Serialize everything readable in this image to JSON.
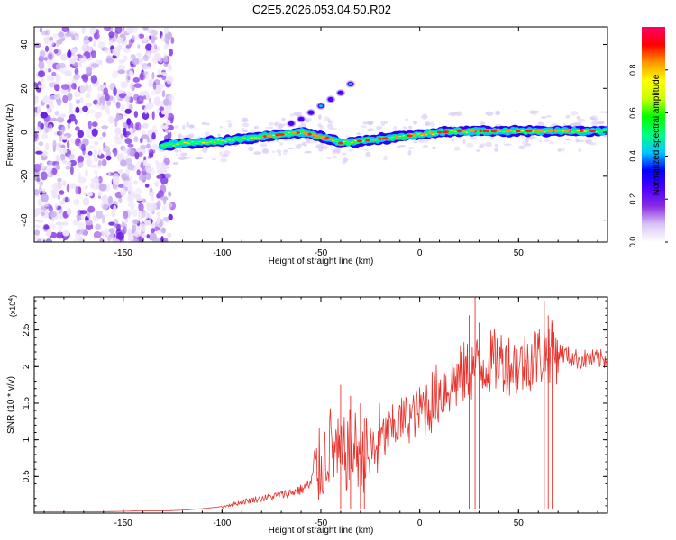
{
  "figure_title": "C2E5.2026.053.04.50.R02",
  "chart_data": [
    {
      "type": "heatmap",
      "panel": "spectrogram",
      "xlabel": "Height of straight line (km)",
      "ylabel": "Frequency (Hz)",
      "xlim": [
        -195,
        95
      ],
      "ylim": [
        -50,
        48
      ],
      "x_ticks": [
        -150,
        -100,
        -50,
        0,
        50
      ],
      "y_ticks": [
        -40,
        -20,
        0,
        20,
        40
      ],
      "x_tick_labels": [
        "-150",
        "-100",
        "-50",
        "0",
        "50"
      ],
      "y_tick_labels": [
        "-40",
        "-20",
        "0",
        "20",
        "40"
      ],
      "noise_region_x": [
        -195,
        -125
      ],
      "ridge": {
        "x": [
          -130,
          -120,
          -110,
          -100,
          -90,
          -80,
          -70,
          -60,
          -50,
          -45,
          -40,
          -30,
          -20,
          -10,
          0,
          10,
          20,
          30,
          40,
          50,
          60,
          70,
          80,
          95
        ],
        "y": [
          -6,
          -5,
          -4.5,
          -4,
          -3,
          -2,
          -1,
          0,
          -2,
          -3,
          -5,
          -4,
          -3,
          -2,
          -1,
          0,
          0.5,
          0.5,
          0.5,
          0.5,
          0.5,
          0.5,
          0.5,
          0.5
        ]
      },
      "branch": {
        "x": [
          -65,
          -60,
          -55,
          -50,
          -45,
          -40,
          -35
        ],
        "y": [
          4,
          6,
          9,
          12,
          15,
          18,
          22
        ]
      },
      "colorbar": {
        "label": "Normalized spectral amplitude",
        "range": [
          0,
          1
        ],
        "ticks": [
          0.0,
          0.2,
          0.4,
          0.6,
          0.8
        ],
        "tick_labels": [
          "0.0",
          "0.2",
          "0.4",
          "0.6",
          "0.8"
        ],
        "colormap": [
          "#ffffff",
          "#d8c4f4",
          "#8a2be2",
          "#4b00ff",
          "#0000ff",
          "#00c8ff",
          "#00ff7f",
          "#00ff00",
          "#c8ff00",
          "#ffff00",
          "#ff9900",
          "#ff0000",
          "#ff0066"
        ]
      }
    },
    {
      "type": "line",
      "panel": "snr",
      "xlabel": "Height of straight line (km)",
      "ylabel": "SNR (10 * v/v)",
      "y_multiplier_label": "(x10",
      "y_multiplier_exponent": "4",
      "y_multiplier_close": ")",
      "xlim": [
        -195,
        95
      ],
      "ylim": [
        0,
        2.95
      ],
      "x_ticks": [
        -150,
        -100,
        -50,
        0,
        50
      ],
      "y_ticks": [
        0.5,
        1.0,
        1.5,
        2.0,
        2.5
      ],
      "x_tick_labels": [
        "-150",
        "-100",
        "-50",
        "0",
        "50"
      ],
      "y_tick_labels": [
        "0.5",
        "1",
        "1.5",
        "2",
        "2.5"
      ],
      "line_color": "#e8322c",
      "series": [
        {
          "name": "SNR",
          "x": [
            -195,
            -180,
            -160,
            -140,
            -130,
            -120,
            -110,
            -100,
            -95,
            -90,
            -85,
            -80,
            -75,
            -70,
            -65,
            -60,
            -55,
            -50,
            -45,
            -40,
            -35,
            -30,
            -25,
            -20,
            -15,
            -10,
            -5,
            0,
            5,
            10,
            15,
            20,
            25,
            30,
            35,
            40,
            45,
            50,
            55,
            60,
            65,
            70,
            75,
            80,
            85,
            90,
            95
          ],
          "values": [
            0.02,
            0.02,
            0.02,
            0.03,
            0.03,
            0.04,
            0.06,
            0.09,
            0.12,
            0.15,
            0.18,
            0.2,
            0.22,
            0.25,
            0.28,
            0.32,
            0.4,
            0.65,
            0.95,
            0.7,
            0.9,
            0.85,
            0.75,
            1.0,
            1.1,
            1.25,
            1.3,
            1.4,
            1.5,
            1.65,
            1.75,
            1.85,
            1.95,
            2.0,
            2.05,
            2.1,
            2.05,
            2.0,
            2.1,
            2.15,
            2.2,
            2.2,
            2.15,
            2.1,
            2.1,
            2.1,
            2.1
          ]
        }
      ],
      "spikes": {
        "x": [
          -40,
          -35,
          -30,
          -28,
          25,
          28,
          30,
          63,
          65,
          67
        ],
        "values": [
          1.75,
          1.6,
          1.5,
          1.3,
          2.7,
          3.0,
          2.6,
          2.9,
          2.7,
          2.6
        ]
      }
    }
  ]
}
